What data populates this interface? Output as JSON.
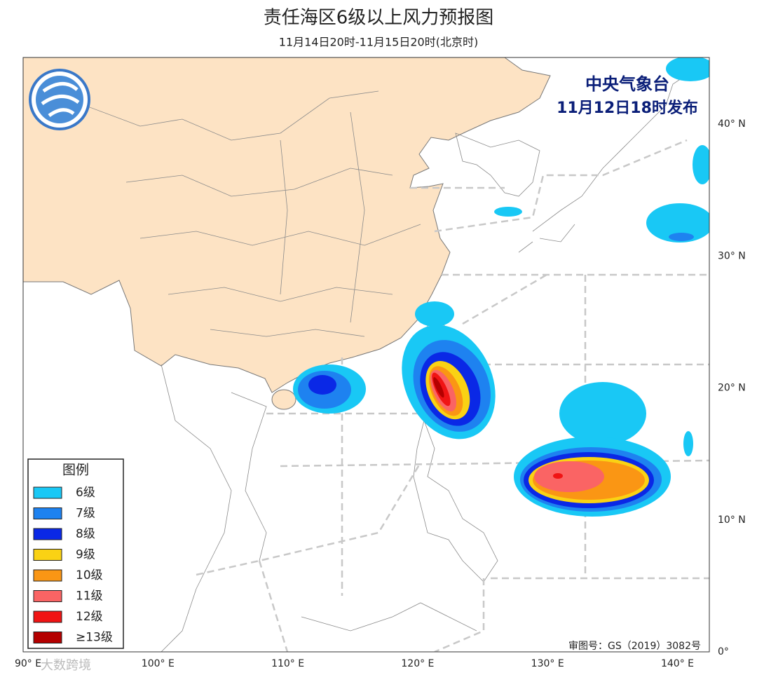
{
  "header": {
    "title": "责任海区6级以上风力预报图",
    "subtitle": "11月14日20时-11月15日20时(北京时)"
  },
  "issuer": {
    "name": "中央气象台",
    "time": "11月12日18时发布"
  },
  "legend": {
    "title": "图例",
    "items": [
      {
        "label": "6级",
        "color": "#19c8f5"
      },
      {
        "label": "7级",
        "color": "#1e82f0"
      },
      {
        "label": "8级",
        "color": "#0a28e6"
      },
      {
        "label": "9级",
        "color": "#fad214"
      },
      {
        "label": "10级",
        "color": "#fa9614"
      },
      {
        "label": "11级",
        "color": "#fa6464"
      },
      {
        "label": "12级",
        "color": "#f01414"
      },
      {
        "label": "≥13级",
        "color": "#b40000"
      }
    ]
  },
  "axes": {
    "lon_labels": [
      "90° E",
      "100° E",
      "110° E",
      "120° E",
      "130° E",
      "140° E"
    ],
    "lat_labels": [
      "40° N",
      "30° N",
      "20° N",
      "10° N",
      "0°"
    ]
  },
  "footer": {
    "approval": "审图号：GS（2019）3082号",
    "watermark": "大数跨境"
  }
}
